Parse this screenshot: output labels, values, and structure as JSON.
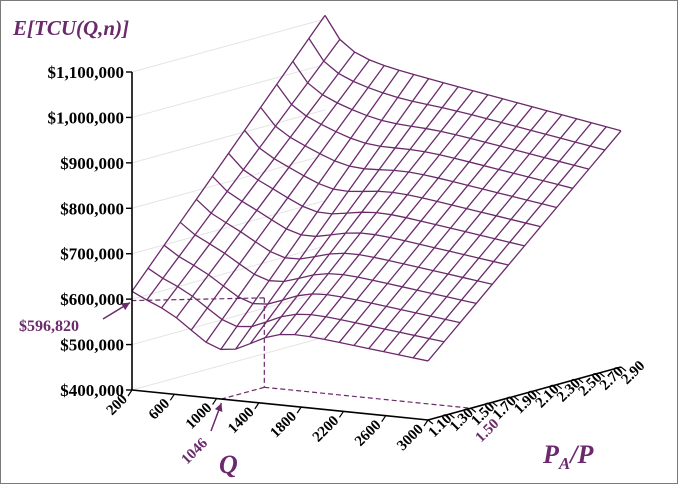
{
  "chart_data": {
    "type": "surface",
    "title": "E[TCU(Q,n)]",
    "z_axis": {
      "ticks": [
        "$400,000",
        "$500,000",
        "$600,000",
        "$700,000",
        "$800,000",
        "$900,000",
        "$1,000,000",
        "$1,100,000"
      ],
      "range": [
        400000,
        1100000
      ]
    },
    "q_axis": {
      "label": "Q",
      "ticks": [
        "200",
        "600",
        "1000",
        "1400",
        "1800",
        "2200",
        "2600",
        "3000"
      ],
      "range": [
        200,
        3000
      ]
    },
    "r_axis": {
      "label_main": "P",
      "label_sub": "A",
      "label_tail": "/P",
      "ticks": [
        "1.10",
        "1.30",
        "1.50",
        "1.70",
        "1.90",
        "2.10",
        "2.30",
        "2.50",
        "2.70",
        "2.90"
      ],
      "range": [
        1.1,
        2.9
      ]
    },
    "optimum": {
      "Q": 1046,
      "ratio": 1.5,
      "cost": 596820,
      "Q_label": "1046",
      "ratio_label": "1.50",
      "cost_label": "$596,820"
    },
    "mesh": {
      "q_lines": 20,
      "r_lines": 12,
      "cost_at_corners": {
        "Q200_r1.10": 600000,
        "Q3000_r1.10": 530000,
        "Q200_r2.90": 1030000,
        "Q3000_r2.90": 920000
      }
    },
    "grid": true,
    "color": "#6b2a6b"
  }
}
